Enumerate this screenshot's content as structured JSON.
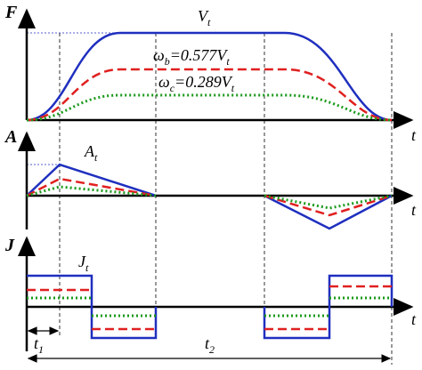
{
  "velocity_panel": {
    "axis_label": "F",
    "time_label": "t",
    "peak_label": {
      "main": "V",
      "sub": "t"
    },
    "curve_b_label": [
      {
        "main": "ω",
        "sub": "b"
      },
      {
        "main": "=0.577V",
        "sub": "t"
      }
    ],
    "curve_c_label": [
      {
        "main": "ω",
        "sub": "c"
      },
      {
        "main": "=0.289V",
        "sub": "t"
      }
    ]
  },
  "acceleration_panel": {
    "axis_label": "A",
    "time_label": "t",
    "peak_label": {
      "main": "A",
      "sub": "t"
    }
  },
  "jerk_panel": {
    "axis_label": "J",
    "time_label": "t",
    "peak_label": {
      "main": "J",
      "sub": "t"
    }
  },
  "intervals": [
    {
      "main": "t",
      "sub": "1"
    },
    {
      "main": "t",
      "sub": "2"
    }
  ]
}
